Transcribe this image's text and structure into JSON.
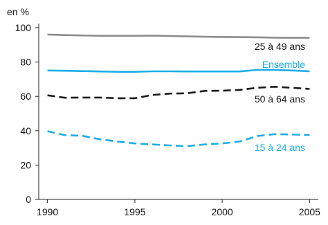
{
  "chart_data": {
    "type": "line",
    "title": "",
    "unit_label": "en %",
    "xlabel": "",
    "ylabel": "",
    "xlim": [
      1989.5,
      2005.5
    ],
    "ylim": [
      0,
      100
    ],
    "x_ticks": [
      1990,
      1995,
      2000,
      2005
    ],
    "y_ticks": [
      0,
      20,
      40,
      60,
      80,
      100
    ],
    "grid": false,
    "x": [
      1990,
      1991,
      1992,
      1993,
      1994,
      1995,
      1996,
      1997,
      1998,
      1999,
      2000,
      2001,
      2002,
      2003,
      2004,
      2005
    ],
    "series": [
      {
        "name": "25 à 49 ans",
        "color": "#8c8c8c",
        "dash": "solid",
        "values": [
          96.0,
          95.7,
          95.5,
          95.3,
          95.3,
          95.3,
          95.4,
          95.2,
          94.9,
          94.7,
          94.6,
          94.5,
          94.4,
          94.2,
          94.1,
          94.1
        ]
      },
      {
        "name": "Ensemble",
        "color": "#1aaee6",
        "dash": "solid",
        "values": [
          75.1,
          74.9,
          74.7,
          74.5,
          74.3,
          74.3,
          74.6,
          74.6,
          74.5,
          74.5,
          74.5,
          74.5,
          75.4,
          75.4,
          75.1,
          74.6
        ]
      },
      {
        "name": "50 à 64 ans",
        "color": "#1a1a1a",
        "dash": "dashed",
        "values": [
          60.6,
          59.2,
          59.3,
          59.3,
          58.9,
          58.9,
          60.8,
          61.6,
          61.8,
          63.2,
          63.3,
          63.8,
          65.0,
          65.6,
          65.0,
          64.3
        ]
      },
      {
        "name": "15 à 24 ans",
        "color": "#1aaee6",
        "dash": "dashed",
        "values": [
          39.7,
          37.4,
          37.0,
          35.0,
          33.7,
          32.6,
          32.0,
          31.4,
          31.0,
          32.0,
          32.6,
          33.7,
          36.9,
          38.0,
          37.8,
          37.5
        ]
      }
    ]
  }
}
